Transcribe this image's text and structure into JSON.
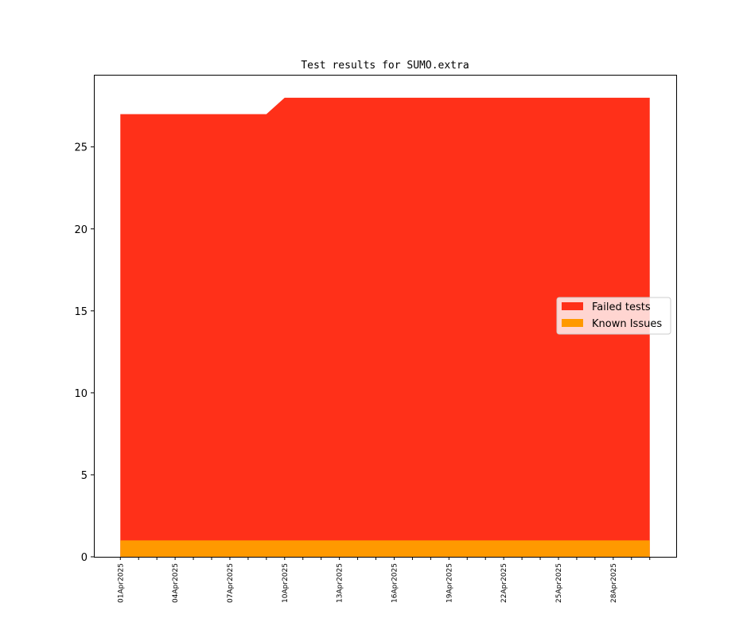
{
  "chart_data": {
    "type": "area",
    "title": "Test results for SUMO.extra",
    "xlabel": "",
    "ylabel": "",
    "x": [
      "01Apr2025",
      "02Apr2025",
      "03Apr2025",
      "04Apr2025",
      "05Apr2025",
      "06Apr2025",
      "07Apr2025",
      "08Apr2025",
      "09Apr2025",
      "10Apr2025",
      "11Apr2025",
      "12Apr2025",
      "13Apr2025",
      "14Apr2025",
      "15Apr2025",
      "16Apr2025",
      "17Apr2025",
      "18Apr2025",
      "19Apr2025",
      "20Apr2025",
      "21Apr2025",
      "22Apr2025",
      "23Apr2025",
      "24Apr2025",
      "25Apr2025",
      "26Apr2025",
      "27Apr2025",
      "28Apr2025",
      "29Apr2025",
      "30Apr2025"
    ],
    "xtick_labels": [
      "01Apr2025",
      "04Apr2025",
      "07Apr2025",
      "10Apr2025",
      "13Apr2025",
      "16Apr2025",
      "19Apr2025",
      "22Apr2025",
      "25Apr2025",
      "28Apr2025"
    ],
    "series": [
      {
        "name": "Failed tests",
        "color": "#ff3019",
        "values": [
          27,
          27,
          27,
          27,
          27,
          27,
          27,
          27,
          27,
          28,
          28,
          28,
          28,
          28,
          28,
          28,
          28,
          28,
          28,
          28,
          28,
          28,
          28,
          28,
          28,
          28,
          28,
          28,
          28,
          28
        ]
      },
      {
        "name": "Known Issues",
        "color": "#ff9900",
        "values": [
          1,
          1,
          1,
          1,
          1,
          1,
          1,
          1,
          1,
          1,
          1,
          1,
          1,
          1,
          1,
          1,
          1,
          1,
          1,
          1,
          1,
          1,
          1,
          1,
          1,
          1,
          1,
          1,
          1,
          1
        ]
      }
    ],
    "yticks": [
      0,
      5,
      10,
      15,
      20,
      25
    ],
    "ylim": [
      0,
      29.4
    ],
    "grid": false,
    "legend_placement": "center-right"
  }
}
